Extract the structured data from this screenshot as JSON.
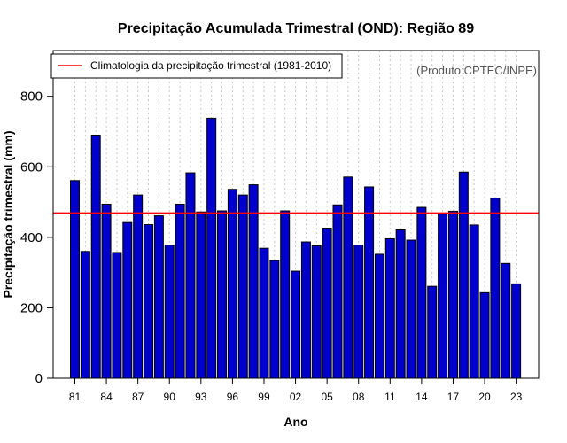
{
  "chart_data": {
    "type": "bar",
    "title": "Precipitação Acumulada Trimestral (OND): Região 89",
    "xlabel": "Ano",
    "ylabel": "Precipitação trimestral (mm)",
    "ylim": [
      0,
      930
    ],
    "yticks": [
      0,
      200,
      400,
      600,
      800
    ],
    "years": [
      1981,
      1982,
      1983,
      1984,
      1985,
      1986,
      1987,
      1988,
      1989,
      1990,
      1991,
      1992,
      1993,
      1994,
      1995,
      1996,
      1997,
      1998,
      1999,
      2000,
      2001,
      2002,
      2003,
      2004,
      2005,
      2006,
      2007,
      2008,
      2009,
      2010,
      2011,
      2012,
      2013,
      2014,
      2015,
      2016,
      2017,
      2018,
      2019,
      2020,
      2021,
      2022,
      2023
    ],
    "xtick_labels": [
      "81",
      "84",
      "87",
      "90",
      "93",
      "96",
      "99",
      "02",
      "05",
      "08",
      "11",
      "14",
      "17",
      "20",
      "23"
    ],
    "values": [
      561,
      360,
      690,
      494,
      357,
      442,
      520,
      436,
      461,
      378,
      494,
      583,
      472,
      738,
      475,
      536,
      520,
      549,
      369,
      334,
      475,
      304,
      387,
      376,
      426,
      492,
      571,
      378,
      543,
      352,
      396,
      421,
      392,
      485,
      261,
      466,
      474,
      585,
      435,
      243,
      511,
      326,
      268
    ],
    "bar_color": "#0000cc",
    "climatology": {
      "label": "Climatologia da precipitação trimestral (1981-2010)",
      "value": 469,
      "color": "#ff0000"
    },
    "legend_position": "top-left",
    "credit": "(Produto:CPTEC/INPE)",
    "grid": "vertical dotted"
  }
}
